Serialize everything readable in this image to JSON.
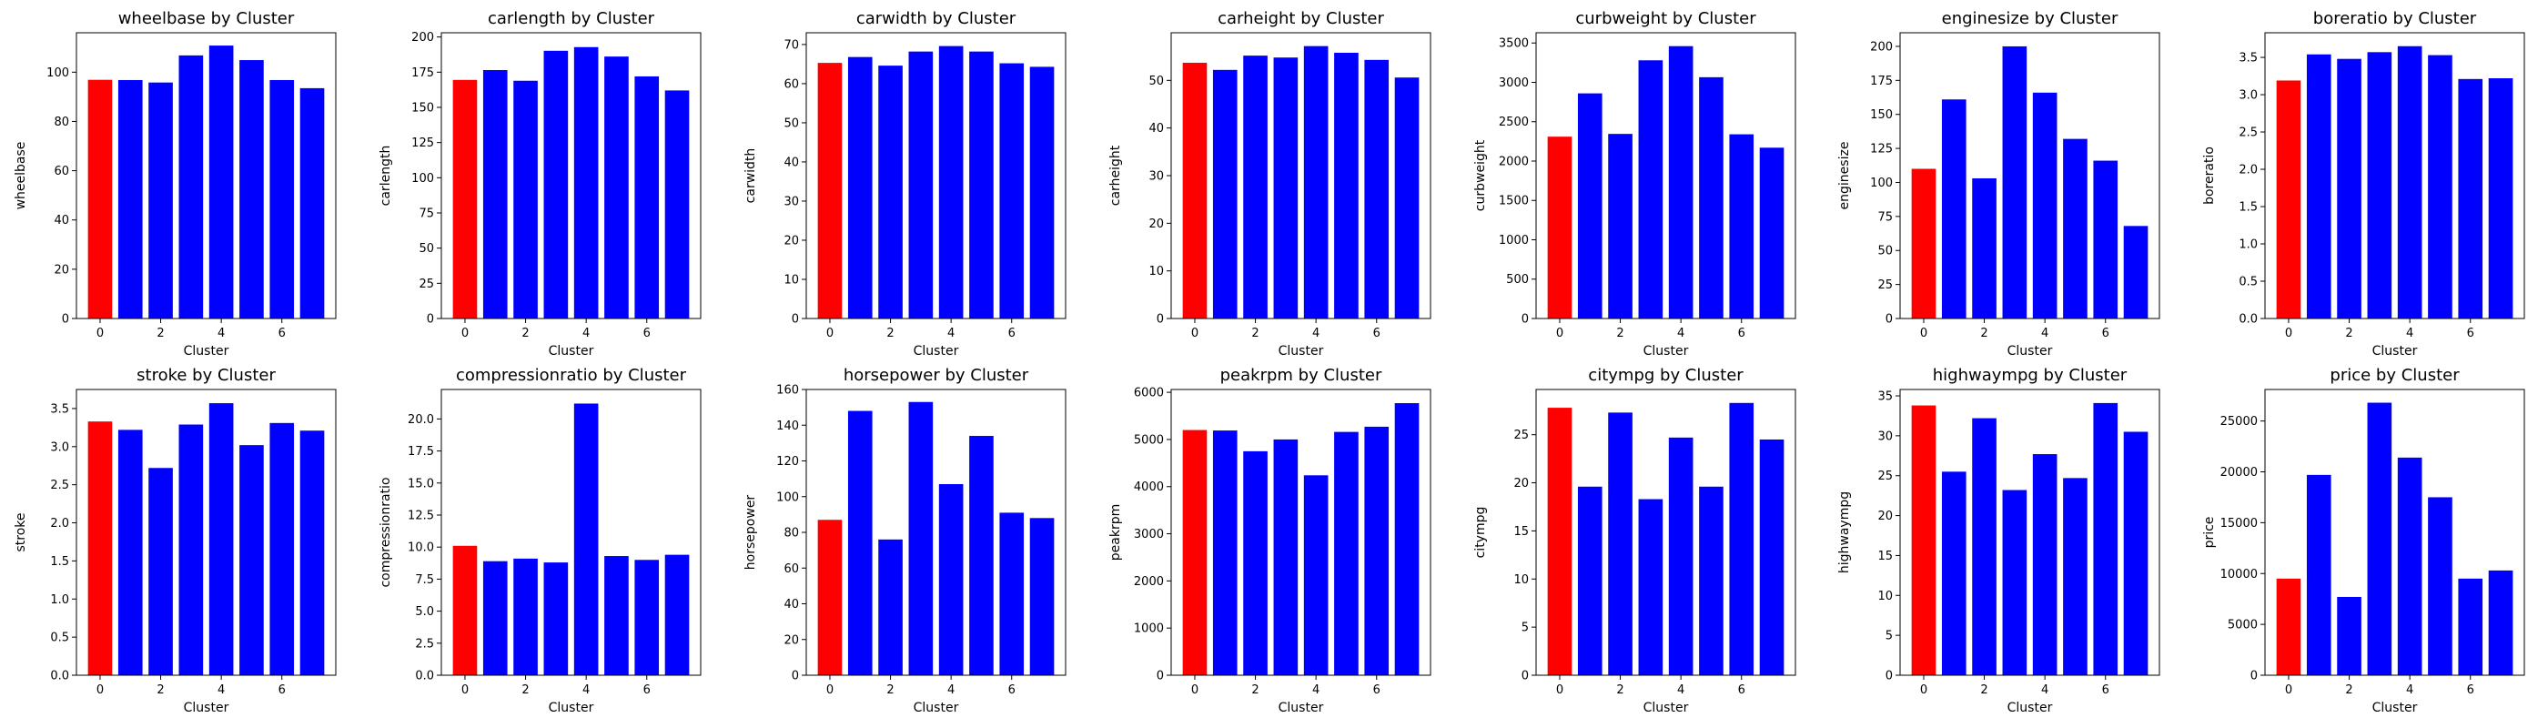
{
  "figure": {
    "highlight_color": "#ff0000",
    "bar_color": "#0000ff",
    "rows": 2,
    "cols": 7
  },
  "chart_data": [
    {
      "type": "bar",
      "title": "wheelbase by Cluster",
      "xlabel": "Cluster",
      "ylabel": "wheelbase",
      "categories": [
        0,
        1,
        2,
        3,
        4,
        5,
        6,
        7
      ],
      "values": [
        96.9,
        96.8,
        95.8,
        106.8,
        110.8,
        104.9,
        96.8,
        93.5
      ],
      "ylim": [
        0,
        116
      ],
      "yticks": [
        0,
        20,
        40,
        60,
        80,
        100
      ],
      "xticks": [
        0,
        2,
        4,
        6
      ]
    },
    {
      "type": "bar",
      "title": "carlength by Cluster",
      "xlabel": "Cluster",
      "ylabel": "carlength",
      "categories": [
        0,
        1,
        2,
        3,
        4,
        5,
        6,
        7
      ],
      "values": [
        169.5,
        176.5,
        168.9,
        190.2,
        192.8,
        186.1,
        172.0,
        162.0
      ],
      "ylim": [
        0,
        203
      ],
      "yticks": [
        0,
        25,
        50,
        75,
        100,
        125,
        150,
        175,
        200
      ],
      "xticks": [
        0,
        2,
        4,
        6
      ]
    },
    {
      "type": "bar",
      "title": "carwidth by Cluster",
      "xlabel": "Cluster",
      "ylabel": "carwidth",
      "categories": [
        0,
        1,
        2,
        3,
        4,
        5,
        6,
        7
      ],
      "values": [
        65.3,
        66.8,
        64.6,
        68.2,
        69.6,
        68.2,
        65.2,
        64.3
      ],
      "ylim": [
        0,
        73
      ],
      "yticks": [
        0,
        10,
        20,
        30,
        40,
        50,
        60,
        70
      ],
      "xticks": [
        0,
        2,
        4,
        6
      ]
    },
    {
      "type": "bar",
      "title": "carheight by Cluster",
      "xlabel": "Cluster",
      "ylabel": "carheight",
      "categories": [
        0,
        1,
        2,
        3,
        4,
        5,
        6,
        7
      ],
      "values": [
        53.7,
        52.2,
        55.2,
        54.8,
        57.2,
        55.8,
        54.3,
        50.6
      ],
      "ylim": [
        0,
        60
      ],
      "yticks": [
        0,
        10,
        20,
        30,
        40,
        50
      ],
      "xticks": [
        0,
        2,
        4,
        6
      ]
    },
    {
      "type": "bar",
      "title": "curbweight by Cluster",
      "xlabel": "Cluster",
      "ylabel": "curbweight",
      "categories": [
        0,
        1,
        2,
        3,
        4,
        5,
        6,
        7
      ],
      "values": [
        2310,
        2860,
        2345,
        3280,
        3460,
        3065,
        2340,
        2170
      ],
      "ylim": [
        0,
        3630
      ],
      "yticks": [
        0,
        500,
        1000,
        1500,
        2000,
        2500,
        3000,
        3500
      ],
      "xticks": [
        0,
        2,
        4,
        6
      ]
    },
    {
      "type": "bar",
      "title": "enginesize by Cluster",
      "xlabel": "Cluster",
      "ylabel": "enginesize",
      "categories": [
        0,
        1,
        2,
        3,
        4,
        5,
        6,
        7
      ],
      "values": [
        110,
        161,
        103,
        200,
        166,
        132,
        116,
        68
      ],
      "ylim": [
        0,
        210
      ],
      "yticks": [
        0,
        25,
        50,
        75,
        100,
        125,
        150,
        175,
        200
      ],
      "xticks": [
        0,
        2,
        4,
        6
      ]
    },
    {
      "type": "bar",
      "title": "boreratio by Cluster",
      "xlabel": "Cluster",
      "ylabel": "boreratio",
      "categories": [
        0,
        1,
        2,
        3,
        4,
        5,
        6,
        7
      ],
      "values": [
        3.19,
        3.54,
        3.48,
        3.57,
        3.65,
        3.53,
        3.21,
        3.22
      ],
      "ylim": [
        0,
        3.83
      ],
      "yticks": [
        0.0,
        0.5,
        1.0,
        1.5,
        2.0,
        2.5,
        3.0,
        3.5
      ],
      "ytick_decimals": 1,
      "xticks": [
        0,
        2,
        4,
        6
      ]
    },
    {
      "type": "bar",
      "title": "stroke by Cluster",
      "xlabel": "Cluster",
      "ylabel": "stroke",
      "categories": [
        0,
        1,
        2,
        3,
        4,
        5,
        6,
        7
      ],
      "values": [
        3.33,
        3.22,
        2.72,
        3.29,
        3.57,
        3.02,
        3.31,
        3.21
      ],
      "ylim": [
        0,
        3.75
      ],
      "yticks": [
        0.0,
        0.5,
        1.0,
        1.5,
        2.0,
        2.5,
        3.0,
        3.5
      ],
      "ytick_decimals": 1,
      "xticks": [
        0,
        2,
        4,
        6
      ]
    },
    {
      "type": "bar",
      "title": "compressionratio by Cluster",
      "xlabel": "Cluster",
      "ylabel": "compressionratio",
      "categories": [
        0,
        1,
        2,
        3,
        4,
        5,
        6,
        7
      ],
      "values": [
        10.1,
        8.9,
        9.1,
        8.8,
        21.2,
        9.3,
        9.0,
        9.4
      ],
      "ylim": [
        0,
        22.3
      ],
      "yticks": [
        0.0,
        2.5,
        5.0,
        7.5,
        10.0,
        12.5,
        15.0,
        17.5,
        20.0
      ],
      "ytick_decimals": 1,
      "xticks": [
        0,
        2,
        4,
        6
      ]
    },
    {
      "type": "bar",
      "title": "horsepower by Cluster",
      "xlabel": "Cluster",
      "ylabel": "horsepower",
      "categories": [
        0,
        1,
        2,
        3,
        4,
        5,
        6,
        7
      ],
      "values": [
        87,
        148,
        76,
        153,
        107,
        134,
        91,
        88
      ],
      "ylim": [
        0,
        160
      ],
      "yticks": [
        0,
        20,
        40,
        60,
        80,
        100,
        120,
        140,
        160
      ],
      "xticks": [
        0,
        2,
        4,
        6
      ]
    },
    {
      "type": "bar",
      "title": "peakrpm by Cluster",
      "xlabel": "Cluster",
      "ylabel": "peakrpm",
      "categories": [
        0,
        1,
        2,
        3,
        4,
        5,
        6,
        7
      ],
      "values": [
        5200,
        5190,
        4750,
        5000,
        4240,
        5160,
        5270,
        5770
      ],
      "ylim": [
        0,
        6060
      ],
      "yticks": [
        0,
        1000,
        2000,
        3000,
        4000,
        5000,
        6000
      ],
      "xticks": [
        0,
        2,
        4,
        6
      ]
    },
    {
      "type": "bar",
      "title": "citympg by Cluster",
      "xlabel": "Cluster",
      "ylabel": "citympg",
      "categories": [
        0,
        1,
        2,
        3,
        4,
        5,
        6,
        7
      ],
      "values": [
        27.8,
        19.6,
        27.3,
        18.3,
        24.7,
        19.6,
        28.3,
        24.5
      ],
      "ylim": [
        0,
        29.7
      ],
      "yticks": [
        0,
        5,
        10,
        15,
        20,
        25
      ],
      "xticks": [
        0,
        2,
        4,
        6
      ]
    },
    {
      "type": "bar",
      "title": "highwaympg by Cluster",
      "xlabel": "Cluster",
      "ylabel": "highwaympg",
      "categories": [
        0,
        1,
        2,
        3,
        4,
        5,
        6,
        7
      ],
      "values": [
        33.8,
        25.5,
        32.2,
        23.2,
        27.7,
        24.7,
        34.1,
        30.5
      ],
      "ylim": [
        0,
        35.8
      ],
      "yticks": [
        0,
        5,
        10,
        15,
        20,
        25,
        30,
        35
      ],
      "xticks": [
        0,
        2,
        4,
        6
      ]
    },
    {
      "type": "bar",
      "title": "price by Cluster",
      "xlabel": "Cluster",
      "ylabel": "price",
      "categories": [
        0,
        1,
        2,
        3,
        4,
        5,
        6,
        7
      ],
      "values": [
        9500,
        19700,
        7700,
        26800,
        21400,
        17500,
        9500,
        10300
      ],
      "ylim": [
        0,
        28100
      ],
      "yticks": [
        0,
        5000,
        10000,
        15000,
        20000,
        25000
      ],
      "xticks": [
        0,
        2,
        4,
        6
      ]
    }
  ]
}
